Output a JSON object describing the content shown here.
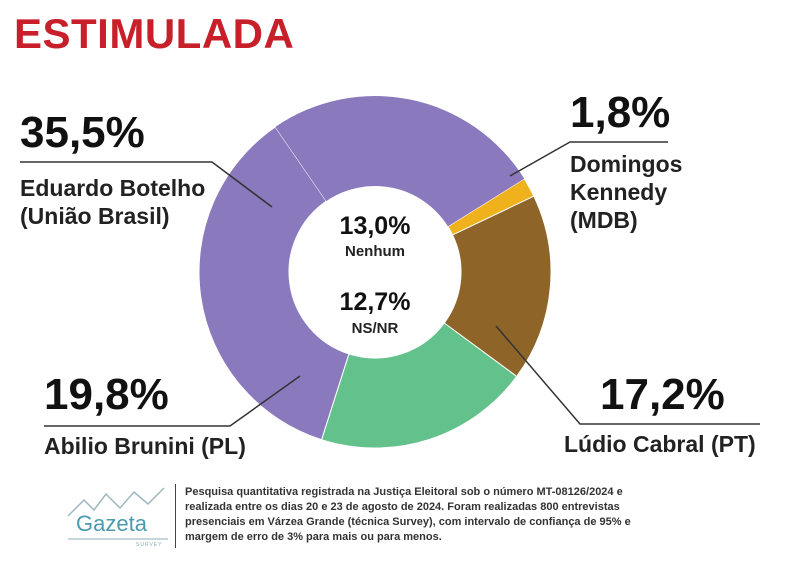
{
  "title": "ESTIMULADA",
  "chart_data": {
    "type": "pie",
    "style": "donut",
    "slices": [
      {
        "label": "Domingos Kennedy (MDB)",
        "value": 1.8,
        "color": "#efb11c"
      },
      {
        "label": "Lúdio Cabral (PT)",
        "value": 17.2,
        "color": "#8e6428"
      },
      {
        "label": "Abilio Brunini (PL)",
        "value": 19.8,
        "color": "#63c18b"
      },
      {
        "label": "Eduardo Botelho (União Brasil)",
        "value": 35.5,
        "color": "#8b79bd"
      }
    ],
    "center": [
      {
        "value": "13,0%",
        "label": "Nenhum"
      },
      {
        "value": "12,7%",
        "label": "NS/NR"
      }
    ]
  },
  "labels": {
    "botelho": {
      "pct": "35,5%",
      "line1": "Eduardo Botelho",
      "line2": "(União Brasil)"
    },
    "kennedy": {
      "pct": "1,8%",
      "line1": "Domingos",
      "line2": "Kennedy",
      "line3": "(MDB)"
    },
    "cabral": {
      "pct": "17,2%",
      "line1": "Lúdio Cabral (PT)"
    },
    "brunini": {
      "pct": "19,8%",
      "line1": "Abilio Brunini (PL)"
    }
  },
  "logo": {
    "name": "Gazeta",
    "sub": "SURVEY"
  },
  "footnote": {
    "line1": "Pesquisa quantitativa registrada na Justiça Eleitoral sob o número MT-08126/2024 e",
    "line2": "realizada entre os dias 20 e 23 de agosto de 2024. Foram realizadas 800 entrevistas",
    "line3": "presenciais em Várzea Grande (técnica Survey), com intervalo de confiança de 95% e",
    "line4": "margem de erro de 3% para mais ou para menos."
  },
  "colors": {
    "title": "#c8202a",
    "leader": "#333333"
  }
}
